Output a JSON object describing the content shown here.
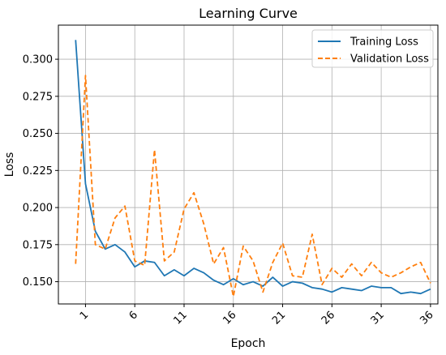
{
  "chart_data": {
    "type": "line",
    "title": "Learning Curve",
    "xlabel": "Epoch",
    "ylabel": "Loss",
    "xlim": [
      -1.75,
      36.75
    ],
    "ylim": [
      0.135,
      0.323
    ],
    "x_ticks": [
      1,
      6,
      11,
      16,
      21,
      26,
      31,
      36
    ],
    "x_tick_labels": [
      "1",
      "6",
      "11",
      "16",
      "21",
      "26",
      "31",
      "36"
    ],
    "y_ticks": [
      0.15,
      0.175,
      0.2,
      0.225,
      0.25,
      0.275,
      0.3
    ],
    "y_tick_labels": [
      "0.150",
      "0.175",
      "0.200",
      "0.225",
      "0.250",
      "0.275",
      "0.300"
    ],
    "grid": true,
    "legend_position": "top-right",
    "x": [
      0,
      1,
      2,
      3,
      4,
      5,
      6,
      7,
      8,
      9,
      10,
      11,
      12,
      13,
      14,
      15,
      16,
      17,
      18,
      19,
      20,
      21,
      22,
      23,
      24,
      25,
      26,
      27,
      28,
      29,
      30,
      31,
      32,
      33,
      34,
      35,
      36
    ],
    "series": [
      {
        "name": "Training Loss",
        "color": "#1f77b4",
        "style": "solid",
        "values": [
          0.313,
          0.216,
          0.184,
          0.172,
          0.175,
          0.17,
          0.16,
          0.164,
          0.163,
          0.154,
          0.158,
          0.154,
          0.159,
          0.156,
          0.151,
          0.148,
          0.152,
          0.148,
          0.15,
          0.147,
          0.153,
          0.147,
          0.15,
          0.149,
          0.146,
          0.145,
          0.143,
          0.146,
          0.145,
          0.144,
          0.147,
          0.146,
          0.146,
          0.142,
          0.143,
          0.142,
          0.145
        ]
      },
      {
        "name": "Validation Loss",
        "color": "#ff7f0e",
        "style": "dashed",
        "values": [
          0.162,
          0.289,
          0.175,
          0.172,
          0.193,
          0.201,
          0.164,
          0.161,
          0.239,
          0.164,
          0.17,
          0.199,
          0.21,
          0.189,
          0.162,
          0.173,
          0.14,
          0.174,
          0.164,
          0.143,
          0.163,
          0.176,
          0.154,
          0.153,
          0.182,
          0.148,
          0.159,
          0.153,
          0.162,
          0.154,
          0.163,
          0.156,
          0.153,
          0.156,
          0.16,
          0.163,
          0.149
        ]
      }
    ]
  }
}
